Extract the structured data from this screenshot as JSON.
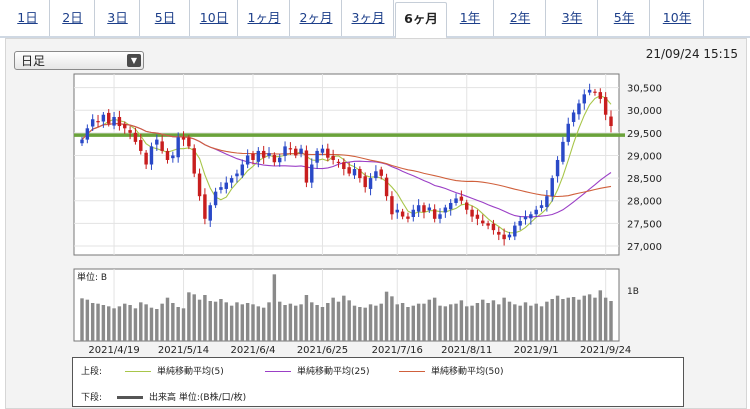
{
  "tabs": [
    {
      "label": "1日"
    },
    {
      "label": "2日"
    },
    {
      "label": "3日"
    },
    {
      "label": "5日"
    },
    {
      "label": "10日"
    },
    {
      "label": "1ヶ月"
    },
    {
      "label": "2ヶ月"
    },
    {
      "label": "3ヶ月"
    },
    {
      "label": "6ヶ月",
      "active": true
    },
    {
      "label": "1年"
    },
    {
      "label": "2年"
    },
    {
      "label": "3年"
    },
    {
      "label": "5年"
    },
    {
      "label": "10年"
    }
  ],
  "period_select": {
    "value": "日足"
  },
  "timestamp": "21/09/24 15:15",
  "volume_panel": {
    "unit_label": "単位: B",
    "axis_label": "1B"
  },
  "legend": {
    "upper_title": "上段:",
    "upper_items": [
      {
        "label": "単純移動平均(5)",
        "color": "#a8c64a"
      },
      {
        "label": "単純移動平均(25)",
        "color": "#9b3fc6"
      },
      {
        "label": "単純移動平均(50)",
        "color": "#d0603c"
      }
    ],
    "lower_title": "下段:",
    "lower_item": {
      "label": "出来高 単位:(B株/口/枚)",
      "color": "#555555"
    }
  },
  "colors": {
    "up": "#2a49c7",
    "down": "#c81e1e",
    "ref_line": "#6aa23a",
    "volume": "#8a8a8a"
  },
  "chart_data": {
    "type": "candlestick",
    "ylim": [
      26800,
      30800
    ],
    "yticks": [
      "27,000",
      "27,500",
      "28,000",
      "28,500",
      "29,000",
      "29,500",
      "30,000",
      "30,500"
    ],
    "xticks": [
      "2021/4/19",
      "2021/5/14",
      "2021/6/4",
      "2021/6/25",
      "2021/7/16",
      "2021/8/11",
      "2021/9/1",
      "2021/9/24"
    ],
    "ref_line": 29450,
    "close": [
      29350,
      29600,
      29800,
      29750,
      29900,
      29700,
      29850,
      29650,
      29600,
      29500,
      29300,
      29100,
      28800,
      29200,
      29350,
      29100,
      28900,
      29000,
      29400,
      29350,
      29200,
      28600,
      28100,
      27600,
      27900,
      28200,
      28300,
      28400,
      28500,
      28600,
      28800,
      29000,
      28900,
      29100,
      28950,
      29050,
      28850,
      28950,
      29200,
      29150,
      29000,
      29150,
      28400,
      28800,
      29100,
      29150,
      28950,
      28900,
      28850,
      28700,
      28600,
      28700,
      28500,
      28300,
      28500,
      28650,
      28550,
      28100,
      27700,
      27800,
      27650,
      27600,
      27800,
      27900,
      27750,
      27850,
      27600,
      27700,
      27850,
      27950,
      28050,
      28000,
      27800,
      27650,
      27600,
      27500,
      27450,
      27350,
      27250,
      27150,
      27250,
      27450,
      27550,
      27650,
      27700,
      27800,
      27900,
      28100,
      28500,
      28900,
      29300,
      29700,
      29950,
      30150,
      30350,
      30450,
      30400,
      30250,
      29900,
      29650
    ],
    "volume": [
      0.64,
      0.62,
      0.57,
      0.56,
      0.54,
      0.52,
      0.49,
      0.52,
      0.56,
      0.54,
      0.49,
      0.58,
      0.55,
      0.5,
      0.48,
      0.56,
      0.65,
      0.57,
      0.51,
      0.49,
      0.73,
      0.7,
      0.62,
      0.69,
      0.6,
      0.59,
      0.63,
      0.58,
      0.53,
      0.58,
      0.55,
      0.57,
      0.55,
      0.52,
      0.5,
      0.58,
      1.0,
      0.59,
      0.54,
      0.56,
      0.53,
      0.55,
      0.69,
      0.58,
      0.54,
      0.51,
      0.57,
      0.65,
      0.59,
      0.68,
      0.61,
      0.53,
      0.51,
      0.5,
      0.55,
      0.53,
      0.56,
      0.74,
      0.67,
      0.55,
      0.57,
      0.51,
      0.53,
      0.56,
      0.56,
      0.62,
      0.65,
      0.53,
      0.52,
      0.55,
      0.56,
      0.61,
      0.52,
      0.53,
      0.57,
      0.62,
      0.57,
      0.61,
      0.55,
      0.65,
      0.59,
      0.55,
      0.53,
      0.58,
      0.53,
      0.56,
      0.52,
      0.59,
      0.63,
      0.68,
      0.63,
      0.65,
      0.66,
      0.62,
      0.68,
      0.7,
      0.65,
      0.76,
      0.65,
      0.6
    ]
  }
}
